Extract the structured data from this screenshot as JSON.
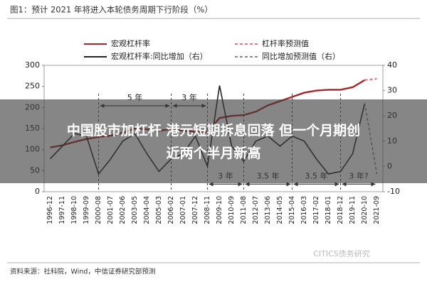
{
  "chart_data": {
    "type": "line",
    "title": "图1：预计 2021 年将进入本轮债务周期下行阶段（%）",
    "categories": [
      "1996-12",
      "1997-11",
      "1998-10",
      "1999-09",
      "2000-08",
      "2001-07",
      "2002-06",
      "2003-05",
      "2004-04",
      "2005-03",
      "2006-02",
      "2007-01",
      "2007-12",
      "2008-11",
      "2009-10",
      "2010-09",
      "2011-08",
      "2012-07",
      "2013-06",
      "2014-05",
      "2015-04",
      "2016-03",
      "2017-02",
      "2018-01",
      "2018-12",
      "2019-11",
      "2020-10",
      "2021-09"
    ],
    "series": [
      {
        "name": "宏观杠杆率",
        "color": "#a0282a",
        "line_style": "solid",
        "axis": "y",
        "values": [
          105,
          110,
          118,
          125,
          130,
          133,
          140,
          150,
          148,
          145,
          148,
          145,
          142,
          142,
          175,
          180,
          182,
          190,
          205,
          215,
          225,
          235,
          240,
          242,
          242,
          248,
          265,
          null
        ]
      },
      {
        "name": "杠杆率预测值",
        "color": "#e07a8a",
        "line_style": "dashed",
        "axis": "y",
        "values": [
          null,
          null,
          null,
          null,
          null,
          null,
          null,
          null,
          null,
          null,
          null,
          null,
          null,
          null,
          null,
          null,
          null,
          null,
          null,
          null,
          null,
          null,
          null,
          null,
          null,
          null,
          265,
          268
        ]
      },
      {
        "name": "宏观杠杆率:同比增加（右）",
        "color": "#222222",
        "line_style": "solid",
        "axis": "y2",
        "values": [
          3,
          8,
          13,
          12,
          -3,
          3,
          10,
          13,
          5,
          -2,
          3,
          5,
          12,
          0,
          32,
          8,
          2,
          10,
          12,
          8,
          12,
          10,
          3,
          -3,
          -2,
          5,
          25,
          null
        ]
      },
      {
        "name": "同比增加预测值（右）",
        "color": "#888888",
        "line_style": "dashed",
        "axis": "y2",
        "values": [
          null,
          null,
          null,
          null,
          null,
          null,
          null,
          null,
          null,
          null,
          null,
          null,
          null,
          null,
          null,
          null,
          null,
          null,
          null,
          null,
          null,
          null,
          null,
          null,
          null,
          null,
          25,
          -3
        ]
      }
    ],
    "ylim": [
      0,
      300
    ],
    "yticks": [
      0,
      50,
      100,
      150,
      200,
      250,
      300
    ],
    "y2lim": [
      -10,
      40
    ],
    "y2ticks": [
      -10,
      0,
      10,
      20,
      30,
      40
    ],
    "annotations": [
      "5 年",
      "3 年",
      "3 年",
      "3.5 年",
      "3.5 年",
      "3 年?"
    ],
    "banner": "中国股市加杠杆 港元短期拆息回落 但一个月期创近两个半月新高",
    "source": "资料来源：社科院，Wind，中信证券研究部预测",
    "watermark": "CITICS债务研究"
  }
}
